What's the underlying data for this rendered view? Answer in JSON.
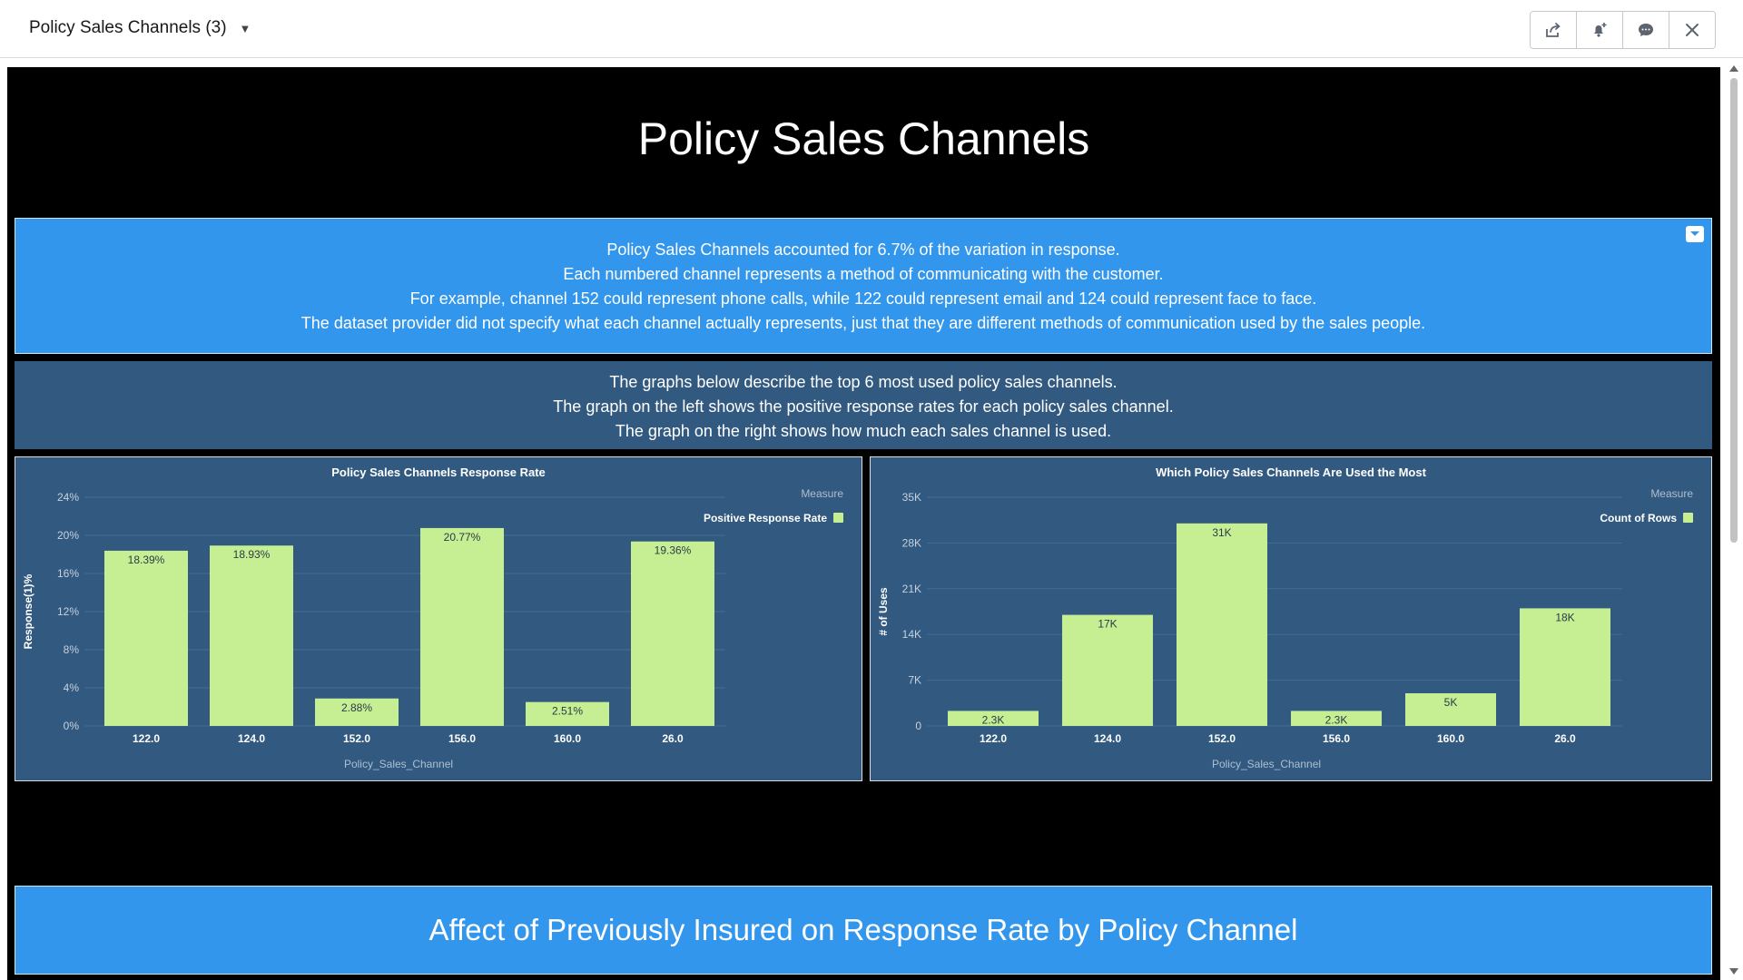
{
  "header": {
    "tab_title": "Policy Sales Channels (3)",
    "buttons": [
      {
        "icon": "share-icon"
      },
      {
        "icon": "bell-plus-icon"
      },
      {
        "icon": "comment-icon"
      },
      {
        "icon": "close-icon"
      }
    ]
  },
  "dashboard": {
    "title": "Policy Sales Channels",
    "info_lines": [
      "Policy Sales Channels accounted for 6.7% of the variation in response.",
      "Each numbered channel represents a method of communicating with the customer.",
      "For example, channel 152 could represent phone calls, while 122 could represent email and 124 could represent face to face.",
      "The dataset provider did not specify what each channel actually represents, just that they are different methods of communication used by the sales people."
    ],
    "description_lines": [
      "The graphs below describe the top 6 most used policy sales channels.",
      "The graph on the left shows the positive response rates for each policy sales channel.",
      "The graph on the right shows how much each sales channel is used."
    ],
    "section_title": "Affect of Previously Insured on Response Rate by Policy Channel"
  },
  "colors": {
    "bar": "#c6ef94",
    "panel": "#32597f",
    "accent": "#3296ed"
  },
  "chart_data": [
    {
      "type": "bar",
      "title": "Policy Sales Channels Response Rate",
      "xlabel": "Policy_Sales_Channel",
      "ylabel": "Response(1)%",
      "legend_title": "Measure",
      "legend_position": "top-right",
      "categories": [
        "122.0",
        "124.0",
        "152.0",
        "156.0",
        "160.0",
        "26.0"
      ],
      "series": [
        {
          "name": "Positive Response Rate",
          "values": [
            18.39,
            18.93,
            2.88,
            20.77,
            2.51,
            19.36
          ]
        }
      ],
      "data_labels": [
        "18.39%",
        "18.93%",
        "2.88%",
        "20.77%",
        "2.51%",
        "19.36%"
      ],
      "yticks": [
        0,
        4,
        8,
        12,
        16,
        20,
        24
      ],
      "ytick_labels": [
        "0%",
        "4%",
        "8%",
        "12%",
        "16%",
        "20%",
        "24%"
      ],
      "ylim": [
        0,
        24
      ],
      "grid": true
    },
    {
      "type": "bar",
      "title": "Which Policy Sales Channels Are Used the Most",
      "xlabel": "Policy_Sales_Channel",
      "ylabel": "# of Uses",
      "legend_title": "Measure",
      "legend_position": "top-right",
      "categories": [
        "122.0",
        "124.0",
        "152.0",
        "156.0",
        "160.0",
        "26.0"
      ],
      "series": [
        {
          "name": "Count of Rows",
          "values": [
            2300,
            17000,
            31000,
            2300,
            5000,
            18000
          ]
        }
      ],
      "data_labels": [
        "2.3K",
        "17K",
        "31K",
        "2.3K",
        "5K",
        "18K"
      ],
      "yticks": [
        0,
        7000,
        14000,
        21000,
        28000,
        35000
      ],
      "ytick_labels": [
        "0",
        "7K",
        "14K",
        "21K",
        "28K",
        "35K"
      ],
      "ylim": [
        0,
        35000
      ],
      "grid": true
    }
  ]
}
